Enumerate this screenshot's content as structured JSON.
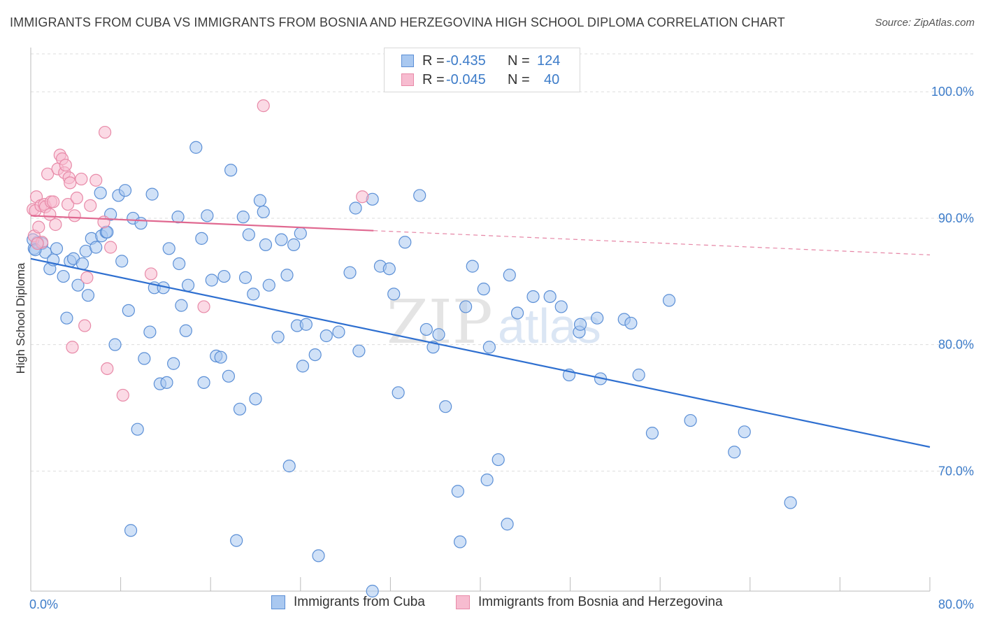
{
  "header": {
    "title": "IMMIGRANTS FROM CUBA VS IMMIGRANTS FROM BOSNIA AND HERZEGOVINA HIGH SCHOOL DIPLOMA CORRELATION CHART",
    "source": "Source: ZipAtlas.com"
  },
  "legend": {
    "rows": [
      {
        "r_label": "R =",
        "r_value": "-0.435",
        "n_label": "N =",
        "n_value": "124"
      },
      {
        "r_label": "R =",
        "r_value": "-0.045",
        "n_label": "N =",
        "n_value": "40"
      }
    ]
  },
  "watermark": {
    "zip": "ZIP",
    "atlas": "atlas"
  },
  "colors": {
    "cuba_fill": "#a9c8f0",
    "cuba_stroke": "#5b8fd6",
    "cuba_line": "#2e6fd0",
    "bosnia_fill": "#f7bcd0",
    "bosnia_stroke": "#e88aa8",
    "bosnia_line": "#e06890",
    "grid": "#dddddd",
    "tick_text": "#3d7cc9"
  },
  "chart_data": {
    "type": "scatter",
    "title": "IMMIGRANTS FROM CUBA VS IMMIGRANTS FROM BOSNIA AND HERZEGOVINA HIGH SCHOOL DIPLOMA CORRELATION CHART",
    "xlabel": "",
    "ylabel": "High School Diploma",
    "xlim": [
      0,
      80
    ],
    "ylim": [
      60.5,
      103.5
    ],
    "x_tick_labels": [
      "0.0%",
      "80.0%"
    ],
    "y_ticks": [
      70,
      80,
      90,
      100
    ],
    "y_tick_labels": [
      "70.0%",
      "80.0%",
      "90.0%",
      "100.0%"
    ],
    "grid": true,
    "series": [
      {
        "name": "Immigrants from Cuba",
        "r": -0.435,
        "n": 124,
        "trend": {
          "x": [
            0,
            80
          ],
          "y": [
            86.8,
            71.9
          ],
          "style": "solid"
        },
        "points": [
          [
            0.3,
            87.6
          ],
          [
            0.6,
            88.1
          ],
          [
            1.0,
            88.0
          ],
          [
            1.3,
            87.3
          ],
          [
            1.7,
            86.0
          ],
          [
            2.0,
            86.7
          ],
          [
            2.3,
            87.6
          ],
          [
            2.9,
            85.4
          ],
          [
            3.2,
            82.1
          ],
          [
            3.5,
            86.6
          ],
          [
            3.8,
            86.8
          ],
          [
            4.2,
            84.7
          ],
          [
            4.6,
            86.4
          ],
          [
            4.9,
            87.4
          ],
          [
            5.1,
            83.9
          ],
          [
            5.4,
            88.4
          ],
          [
            5.8,
            87.7
          ],
          [
            6.2,
            92.0
          ],
          [
            6.3,
            88.6
          ],
          [
            6.7,
            88.9
          ],
          [
            6.8,
            88.9
          ],
          [
            7.1,
            90.3
          ],
          [
            7.5,
            80.0
          ],
          [
            7.8,
            91.8
          ],
          [
            8.1,
            86.6
          ],
          [
            8.4,
            92.2
          ],
          [
            8.7,
            82.7
          ],
          [
            8.9,
            65.3
          ],
          [
            9.1,
            90.0
          ],
          [
            9.5,
            73.3
          ],
          [
            9.8,
            89.6
          ],
          [
            10.1,
            78.9
          ],
          [
            10.6,
            81.0
          ],
          [
            10.8,
            91.9
          ],
          [
            11.0,
            84.5
          ],
          [
            11.5,
            76.9
          ],
          [
            11.8,
            84.5
          ],
          [
            12.1,
            77.0
          ],
          [
            12.3,
            87.6
          ],
          [
            12.7,
            78.5
          ],
          [
            13.2,
            86.4
          ],
          [
            13.4,
            83.1
          ],
          [
            13.8,
            81.1
          ],
          [
            14.0,
            84.7
          ],
          [
            14.7,
            95.6
          ],
          [
            15.2,
            88.4
          ],
          [
            15.4,
            77.0
          ],
          [
            15.7,
            90.2
          ],
          [
            16.1,
            85.1
          ],
          [
            16.5,
            79.1
          ],
          [
            16.9,
            79.0
          ],
          [
            17.2,
            85.4
          ],
          [
            17.6,
            77.5
          ],
          [
            17.8,
            93.8
          ],
          [
            18.3,
            64.5
          ],
          [
            18.6,
            74.9
          ],
          [
            18.9,
            90.1
          ],
          [
            19.1,
            85.3
          ],
          [
            19.4,
            88.7
          ],
          [
            19.8,
            84.0
          ],
          [
            20.0,
            75.7
          ],
          [
            20.4,
            91.4
          ],
          [
            20.7,
            90.5
          ],
          [
            20.9,
            87.9
          ],
          [
            21.2,
            84.7
          ],
          [
            22.0,
            80.6
          ],
          [
            22.3,
            88.3
          ],
          [
            22.8,
            85.5
          ],
          [
            23.0,
            70.4
          ],
          [
            23.4,
            87.9
          ],
          [
            23.7,
            81.5
          ],
          [
            24.0,
            88.8
          ],
          [
            24.2,
            78.3
          ],
          [
            24.5,
            81.6
          ],
          [
            25.3,
            79.2
          ],
          [
            25.6,
            63.3
          ],
          [
            26.3,
            80.7
          ],
          [
            27.4,
            81.0
          ],
          [
            28.4,
            85.7
          ],
          [
            28.9,
            90.8
          ],
          [
            29.2,
            79.5
          ],
          [
            30.4,
            91.5
          ],
          [
            31.1,
            86.2
          ],
          [
            31.9,
            86.0
          ],
          [
            32.3,
            84.0
          ],
          [
            32.7,
            76.2
          ],
          [
            33.3,
            88.1
          ],
          [
            34.6,
            91.8
          ],
          [
            35.2,
            81.2
          ],
          [
            35.8,
            79.8
          ],
          [
            36.3,
            80.8
          ],
          [
            36.9,
            75.1
          ],
          [
            38.0,
            68.4
          ],
          [
            38.2,
            64.4
          ],
          [
            38.7,
            83.0
          ],
          [
            39.3,
            86.2
          ],
          [
            40.3,
            84.4
          ],
          [
            40.6,
            69.3
          ],
          [
            40.8,
            79.8
          ],
          [
            41.6,
            70.9
          ],
          [
            42.4,
            65.8
          ],
          [
            42.6,
            85.5
          ],
          [
            43.3,
            82.5
          ],
          [
            44.7,
            83.8
          ],
          [
            46.2,
            83.8
          ],
          [
            47.2,
            83.0
          ],
          [
            47.9,
            77.6
          ],
          [
            48.8,
            81.0
          ],
          [
            48.9,
            81.6
          ],
          [
            50.4,
            82.1
          ],
          [
            50.7,
            77.3
          ],
          [
            52.8,
            82.0
          ],
          [
            53.4,
            81.7
          ],
          [
            54.1,
            77.6
          ],
          [
            55.3,
            73.0
          ],
          [
            56.8,
            83.5
          ],
          [
            58.7,
            74.0
          ],
          [
            62.6,
            71.5
          ],
          [
            63.5,
            73.1
          ],
          [
            67.6,
            67.5
          ],
          [
            30.4,
            60.5
          ],
          [
            0.2,
            88.3
          ],
          [
            0.4,
            87.5
          ],
          [
            13.1,
            90.1
          ]
        ]
      },
      {
        "name": "Immigrants from Bosnia and Herzegovina",
        "r": -0.045,
        "n": 40,
        "trend": {
          "x": [
            0,
            80
          ],
          "y": [
            90.2,
            87.1
          ],
          "solid_to_x": 30.5
        },
        "points": [
          [
            0.2,
            90.7
          ],
          [
            0.3,
            88.6
          ],
          [
            0.4,
            90.6
          ],
          [
            0.5,
            91.7
          ],
          [
            0.7,
            89.3
          ],
          [
            0.9,
            91.0
          ],
          [
            1.0,
            88.1
          ],
          [
            1.2,
            91.1
          ],
          [
            1.3,
            90.9
          ],
          [
            1.5,
            93.5
          ],
          [
            1.7,
            90.3
          ],
          [
            1.8,
            91.3
          ],
          [
            2.0,
            91.3
          ],
          [
            2.2,
            89.5
          ],
          [
            2.4,
            93.9
          ],
          [
            2.6,
            95.0
          ],
          [
            2.8,
            94.7
          ],
          [
            3.0,
            93.6
          ],
          [
            3.1,
            94.2
          ],
          [
            3.3,
            91.1
          ],
          [
            3.4,
            93.2
          ],
          [
            3.5,
            92.8
          ],
          [
            3.7,
            79.8
          ],
          [
            3.9,
            90.2
          ],
          [
            4.1,
            91.6
          ],
          [
            4.5,
            93.1
          ],
          [
            4.8,
            81.5
          ],
          [
            5.0,
            85.3
          ],
          [
            5.3,
            91.0
          ],
          [
            5.8,
            93.0
          ],
          [
            6.5,
            89.7
          ],
          [
            6.6,
            96.8
          ],
          [
            6.8,
            78.1
          ],
          [
            7.1,
            87.7
          ],
          [
            8.2,
            76.0
          ],
          [
            10.7,
            85.6
          ],
          [
            15.4,
            83.0
          ],
          [
            20.7,
            98.9
          ],
          [
            29.5,
            91.7
          ],
          [
            0.6,
            88.0
          ]
        ]
      }
    ]
  },
  "bottom_legend": {
    "items": [
      {
        "label": "Immigrants from Cuba"
      },
      {
        "label": "Immigrants from Bosnia and Herzegovina"
      }
    ]
  }
}
